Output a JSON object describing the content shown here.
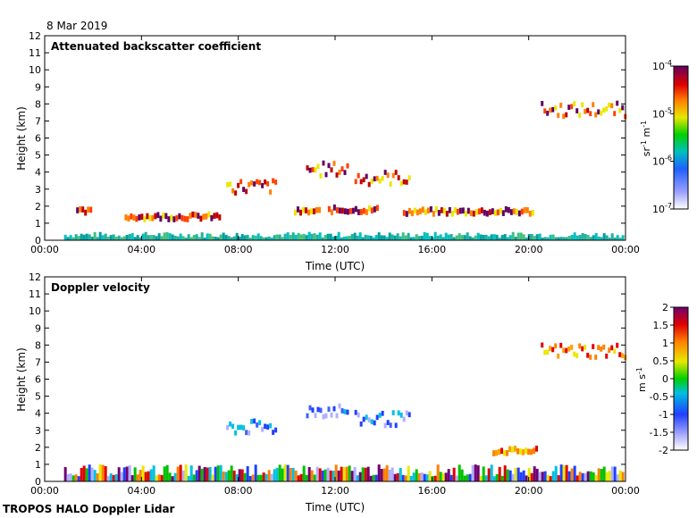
{
  "date_label": "8 Mar 2019",
  "footer": "TROPOS HALO Doppler Lidar",
  "chart_data": [
    {
      "type": "heatmap",
      "title": "Attenuated backscatter coefficient",
      "xlabel": "Time (UTC)",
      "ylabel": "Height (km)",
      "xlim": [
        0,
        24
      ],
      "ylim": [
        0,
        12
      ],
      "x_tick_labels": [
        "00:00",
        "04:00",
        "08:00",
        "12:00",
        "16:00",
        "20:00",
        "00:00"
      ],
      "y_tick_labels": [
        "0",
        "1",
        "2",
        "3",
        "4",
        "5",
        "6",
        "7",
        "8",
        "9",
        "10",
        "11",
        "12"
      ],
      "colorbar": {
        "scale": "log",
        "range": [
          1e-07,
          0.0001
        ],
        "tick_labels": [
          "10",
          "10",
          "10",
          "10"
        ],
        "tick_exponents": [
          "-7",
          "-6",
          "-5",
          "-4"
        ],
        "unit_parts": [
          "sr",
          "-1",
          " m",
          "-1"
        ]
      },
      "features": [
        {
          "kind": "boundary-layer",
          "t_start": 0.8,
          "t_end": 23.9,
          "h_top": 0.5,
          "value": "low"
        },
        {
          "kind": "cloud-layer",
          "t_start": 1.3,
          "t_end": 1.9,
          "h": 1.5,
          "value": "high"
        },
        {
          "kind": "cloud-layer",
          "t_start": 3.3,
          "t_end": 7.2,
          "h": 1.2,
          "value": "high"
        },
        {
          "kind": "cloud-layer",
          "t_start": 10.3,
          "t_end": 11.3,
          "h": 1.5,
          "value": "high"
        },
        {
          "kind": "cloud-layer",
          "t_start": 11.7,
          "t_end": 13.7,
          "h": 1.6,
          "value": "high"
        },
        {
          "kind": "cloud-layer",
          "t_start": 14.8,
          "t_end": 20.2,
          "h": 1.5,
          "value": "high"
        },
        {
          "kind": "mid-cloud",
          "t_start": 7.5,
          "t_end": 9.5,
          "h": 3.0,
          "value": "high"
        },
        {
          "kind": "mid-cloud",
          "t_start": 10.8,
          "t_end": 12.5,
          "h": 4.0,
          "value": "high"
        },
        {
          "kind": "mid-cloud",
          "t_start": 12.8,
          "t_end": 15.1,
          "h": 3.5,
          "value": "high"
        },
        {
          "kind": "cirrus",
          "t_start": 20.5,
          "t_end": 24.0,
          "h": 7.5,
          "value": "high"
        }
      ]
    },
    {
      "type": "heatmap",
      "title": "Doppler velocity",
      "xlabel": "Time (UTC)",
      "ylabel": "Height (km)",
      "xlim": [
        0,
        24
      ],
      "ylim": [
        0,
        12
      ],
      "x_tick_labels": [
        "00:00",
        "04:00",
        "08:00",
        "12:00",
        "16:00",
        "20:00",
        "00:00"
      ],
      "y_tick_labels": [
        "0",
        "1",
        "2",
        "3",
        "4",
        "5",
        "6",
        "7",
        "8",
        "9",
        "10",
        "11",
        "12"
      ],
      "colorbar": {
        "scale": "linear",
        "range": [
          -2,
          2
        ],
        "tick_labels": [
          "2",
          "1.5",
          "1",
          "0.5",
          "0",
          "-0.5",
          "-1",
          "-1.5",
          "-2"
        ],
        "unit_parts": [
          "m s",
          "-1"
        ]
      },
      "features": [
        {
          "kind": "boundary-layer",
          "t_start": 0.8,
          "t_end": 23.9,
          "h_top": 1.0,
          "value": "mixed"
        },
        {
          "kind": "cloud-layer",
          "t_start": 18.5,
          "t_end": 20.3,
          "h": 1.6,
          "value": "positive"
        },
        {
          "kind": "mid-cloud",
          "t_start": 7.5,
          "t_end": 9.5,
          "h": 3.0,
          "value": "negative"
        },
        {
          "kind": "mid-cloud",
          "t_start": 10.8,
          "t_end": 12.5,
          "h": 4.0,
          "value": "negative"
        },
        {
          "kind": "mid-cloud",
          "t_start": 12.8,
          "t_end": 15.1,
          "h": 3.5,
          "value": "negative"
        },
        {
          "kind": "cirrus",
          "t_start": 20.5,
          "t_end": 24.0,
          "h": 7.5,
          "value": "positive"
        }
      ]
    }
  ]
}
